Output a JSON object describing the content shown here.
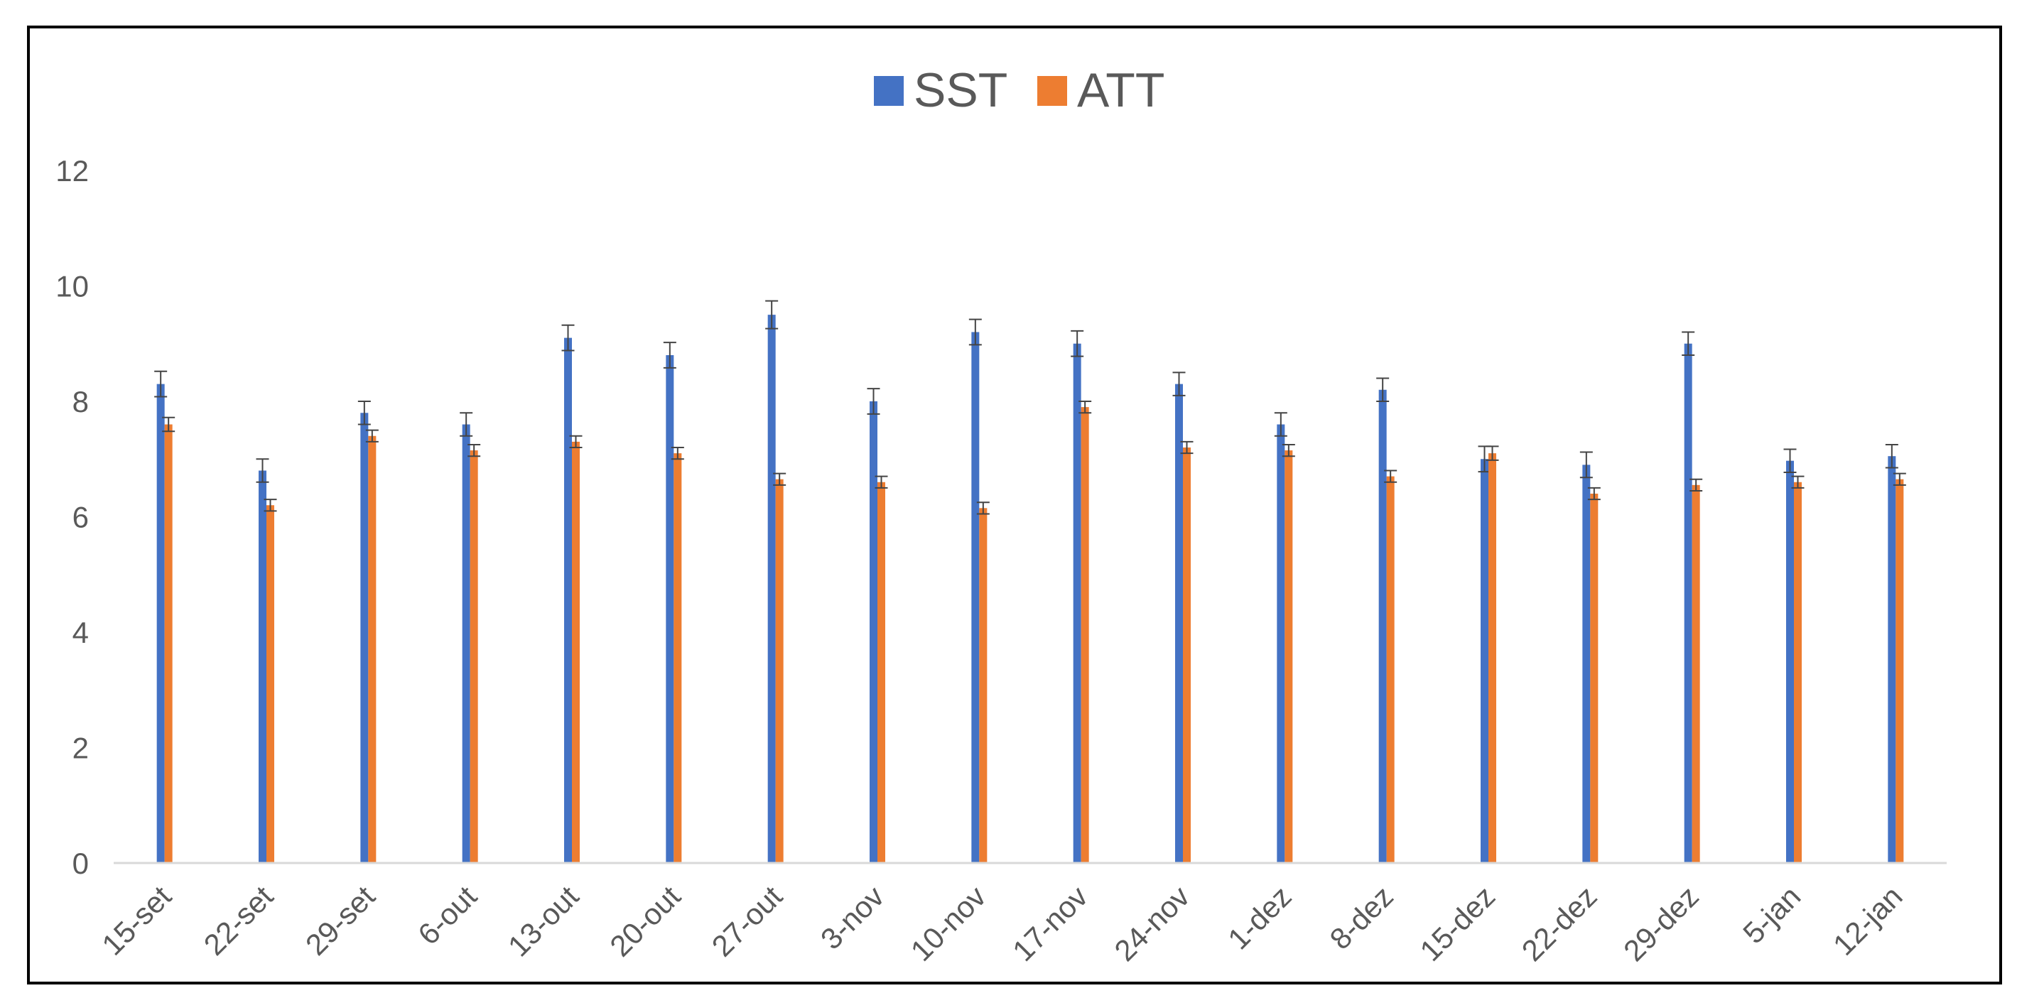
{
  "chart_data": {
    "type": "bar",
    "title": "",
    "xlabel": "",
    "ylabel": "",
    "ylim": [
      0,
      12
    ],
    "yticks": [
      0,
      2,
      4,
      6,
      8,
      10,
      12
    ],
    "grid": false,
    "legend_position": "top-center",
    "error_bars": true,
    "categories": [
      "15-set",
      "22-set",
      "29-set",
      "6-out",
      "13-out",
      "20-out",
      "27-out",
      "3-nov",
      "10-nov",
      "17-nov",
      "24-nov",
      "1-dez",
      "8-dez",
      "15-dez",
      "22-dez",
      "29-dez",
      "5-jan",
      "12-jan"
    ],
    "series": [
      {
        "name": "SST",
        "color": "#4472C4",
        "values": [
          8.3,
          6.8,
          7.8,
          7.6,
          9.1,
          8.8,
          9.5,
          8.0,
          9.2,
          9.0,
          8.3,
          7.6,
          8.2,
          7.0,
          6.9,
          9.0,
          6.97,
          7.05
        ],
        "errors": [
          0.22,
          0.2,
          0.2,
          0.2,
          0.22,
          0.22,
          0.24,
          0.22,
          0.22,
          0.22,
          0.2,
          0.2,
          0.2,
          0.22,
          0.22,
          0.2,
          0.2,
          0.2
        ]
      },
      {
        "name": "ATT",
        "color": "#ED7D31",
        "values": [
          7.6,
          6.2,
          7.4,
          7.15,
          7.3,
          7.1,
          6.65,
          6.6,
          6.15,
          7.9,
          7.2,
          7.15,
          6.7,
          7.1,
          6.4,
          6.55,
          6.6,
          6.65
        ],
        "errors": [
          0.12,
          0.1,
          0.1,
          0.1,
          0.1,
          0.1,
          0.1,
          0.1,
          0.1,
          0.1,
          0.1,
          0.1,
          0.1,
          0.12,
          0.1,
          0.1,
          0.1,
          0.1
        ]
      }
    ]
  }
}
